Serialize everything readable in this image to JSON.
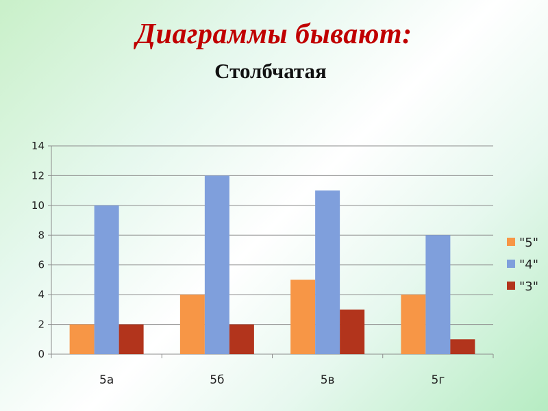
{
  "slide": {
    "title": "Диаграммы бывают:",
    "subtitle": "Столбчатая"
  },
  "chart_data": {
    "type": "bar",
    "categories": [
      "5а",
      "5б",
      "5в",
      "5г"
    ],
    "series": [
      {
        "name": "\"5\"",
        "values": [
          2,
          4,
          5,
          4
        ],
        "color": "#f79646"
      },
      {
        "name": "\"4\"",
        "values": [
          10,
          12,
          11,
          8
        ],
        "color": "#7f9fdc"
      },
      {
        "name": "\"3\"",
        "values": [
          2,
          2,
          3,
          1
        ],
        "color": "#b2341c"
      }
    ],
    "ylim": [
      0,
      14
    ],
    "yticks": [
      0,
      2,
      4,
      6,
      8,
      10,
      12,
      14
    ],
    "grid": true,
    "legend_position": "right"
  }
}
